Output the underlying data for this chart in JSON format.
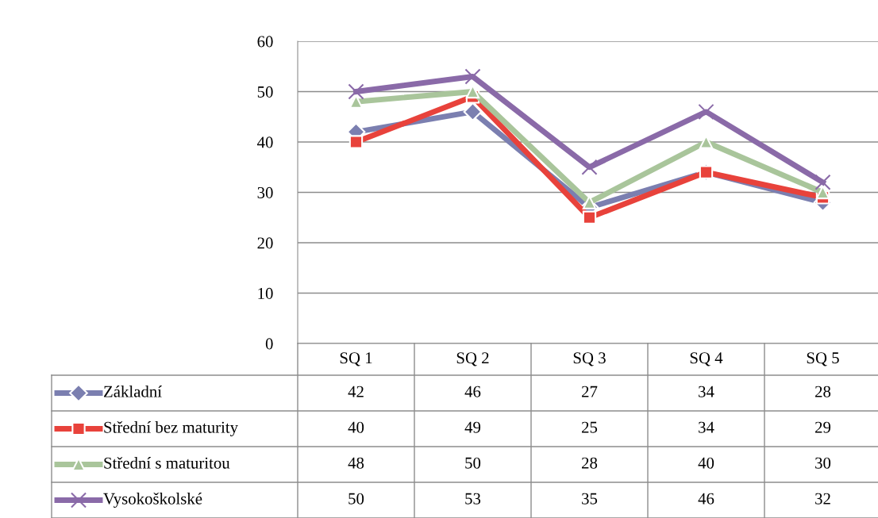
{
  "chart_data": {
    "type": "line",
    "categories": [
      "SQ 1",
      "SQ 2",
      "SQ 3",
      "SQ 4",
      "SQ 5"
    ],
    "series": [
      {
        "name": "Základní",
        "color": "#7b7fb0",
        "marker": "diamond",
        "values": [
          42,
          46,
          27,
          34,
          28
        ]
      },
      {
        "name": "Střední bez maturity",
        "color": "#e8423b",
        "marker": "square",
        "values": [
          40,
          49,
          25,
          34,
          29
        ]
      },
      {
        "name": "Střední s maturitou",
        "color": "#a9c59b",
        "marker": "triangle",
        "values": [
          48,
          50,
          28,
          40,
          30
        ]
      },
      {
        "name": "Vysokoškolské",
        "color": "#8a6aa8",
        "marker": "cross",
        "values": [
          50,
          53,
          35,
          46,
          32
        ]
      }
    ],
    "ylim": [
      0,
      60
    ],
    "yticks": [
      0,
      10,
      20,
      30,
      40,
      50,
      60
    ],
    "grid": "y",
    "data_labels": true,
    "legend": "bottom",
    "line_style": "solid"
  }
}
